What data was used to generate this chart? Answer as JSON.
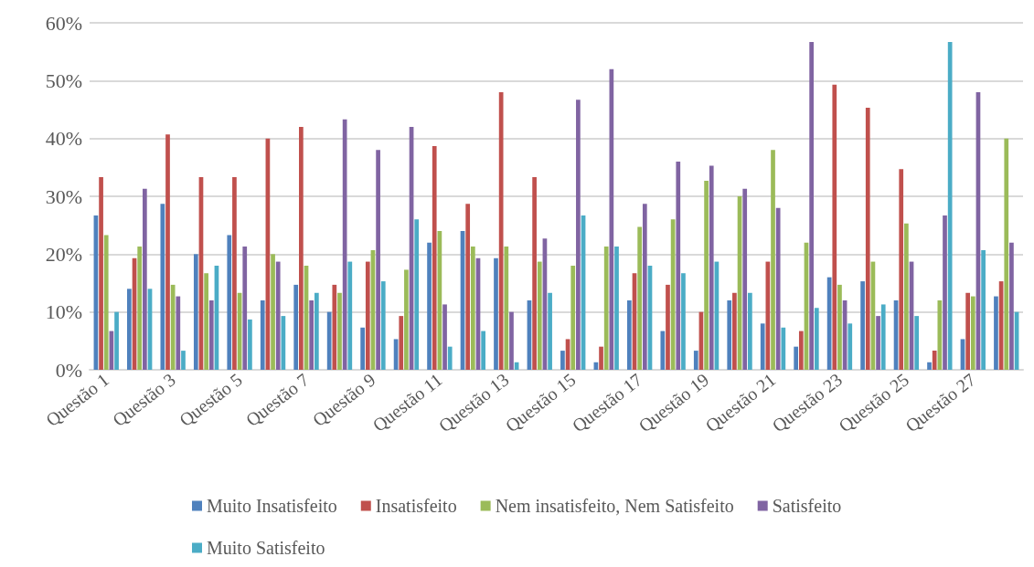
{
  "chart_data": {
    "type": "bar",
    "categories": [
      "Questão 1",
      null,
      "Questão 3",
      null,
      "Questão 5",
      null,
      "Questão 7",
      null,
      "Questão 9",
      null,
      "Questão 11",
      null,
      "Questão 13",
      null,
      "Questão 15",
      null,
      "Questão 17",
      null,
      "Questão 19",
      null,
      "Questão 21",
      null,
      "Questão 23",
      null,
      "Questão 25",
      null,
      "Questão 27",
      null
    ],
    "series": [
      {
        "name": "Muito Insatisfeito",
        "color": "#4f81bd",
        "values": [
          26.7,
          14,
          28.7,
          20,
          23.3,
          12,
          14.7,
          10,
          7.3,
          5.3,
          22,
          24,
          19.3,
          12,
          3.3,
          1.3,
          12,
          6.7,
          3.3,
          12,
          8,
          4,
          16,
          15.3,
          12,
          1.3,
          5.3,
          12.7
        ]
      },
      {
        "name": "Insatisfeito",
        "color": "#c0504d",
        "values": [
          33.3,
          19.3,
          40.7,
          33.3,
          33.3,
          40,
          42,
          14.7,
          18.7,
          9.3,
          38.7,
          28.7,
          48,
          33.3,
          5.3,
          4,
          16.7,
          14.7,
          10,
          13.3,
          18.7,
          6.7,
          49.3,
          45.3,
          34.7,
          3.3,
          13.3,
          15.3
        ]
      },
      {
        "name": "Nem insatisfeito, Nem Satisfeito",
        "color": "#9bbb59",
        "values": [
          23.3,
          21.3,
          14.7,
          16.7,
          13.3,
          20,
          18,
          13.3,
          20.7,
          17.3,
          24,
          21.3,
          21.3,
          18.7,
          18,
          21.3,
          24.7,
          26,
          32.7,
          30,
          38,
          22,
          14.7,
          18.7,
          25.3,
          12,
          12.7,
          40
        ]
      },
      {
        "name": "Satisfeito",
        "color": "#8064a2",
        "values": [
          6.7,
          31.3,
          12.7,
          12,
          21.3,
          18.7,
          12,
          43.3,
          38,
          42,
          11.3,
          19.3,
          10,
          22.7,
          46.7,
          52,
          28.7,
          36,
          35.3,
          31.3,
          28,
          56.7,
          12,
          9.3,
          18.7,
          26.7,
          48,
          22
        ]
      },
      {
        "name": "Muito Satisfeito",
        "color": "#4bacc6",
        "values": [
          10,
          14,
          3.3,
          18,
          8.7,
          9.3,
          13.3,
          18.7,
          15.3,
          26,
          4,
          6.7,
          1.3,
          13.3,
          26.7,
          21.3,
          18,
          16.7,
          18.7,
          13.3,
          7.3,
          10.7,
          8,
          11.3,
          9.3,
          56.7,
          20.7,
          10
        ]
      }
    ],
    "ylim": [
      0,
      60
    ],
    "yticks": [
      {
        "value": 0,
        "label": "0%"
      },
      {
        "value": 10,
        "label": "10%"
      },
      {
        "value": 20,
        "label": "20%"
      },
      {
        "value": 30,
        "label": "30%"
      },
      {
        "value": 40,
        "label": "40%"
      },
      {
        "value": 50,
        "label": "50%"
      },
      {
        "value": 60,
        "label": "60%"
      }
    ],
    "grid": "y",
    "legend": "bottom"
  }
}
